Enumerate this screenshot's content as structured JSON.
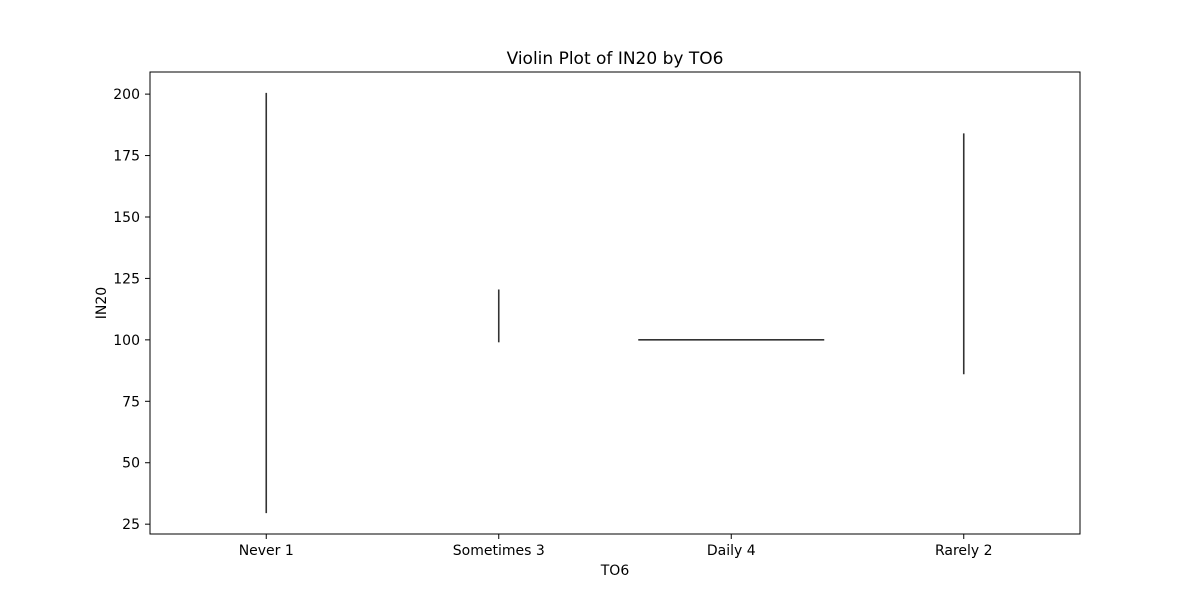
{
  "chart_data": {
    "type": "violin",
    "title": "Violin Plot of IN20 by TO6",
    "xlabel": "TO6",
    "ylabel": "IN20",
    "categories": [
      "Never 1",
      "Sometimes 3",
      "Daily 4",
      "Rarely 2"
    ],
    "ylim": [
      21,
      209
    ],
    "yticks": [
      25,
      50,
      75,
      100,
      125,
      150,
      175,
      200
    ],
    "series": [
      {
        "category": "Never 1",
        "min": 29.5,
        "max": 200.5,
        "kind": "vertical"
      },
      {
        "category": "Sometimes 3",
        "min": 99,
        "max": 120.5,
        "kind": "vertical"
      },
      {
        "category": "Daily 4",
        "min": 100,
        "max": 100,
        "kind": "horizontal"
      },
      {
        "category": "Rarely 2",
        "min": 86,
        "max": 184,
        "kind": "vertical"
      }
    ],
    "grid": false,
    "legend": "none",
    "colors": {
      "line": "#333333",
      "axis": "#000000",
      "background": "#ffffff"
    }
  }
}
